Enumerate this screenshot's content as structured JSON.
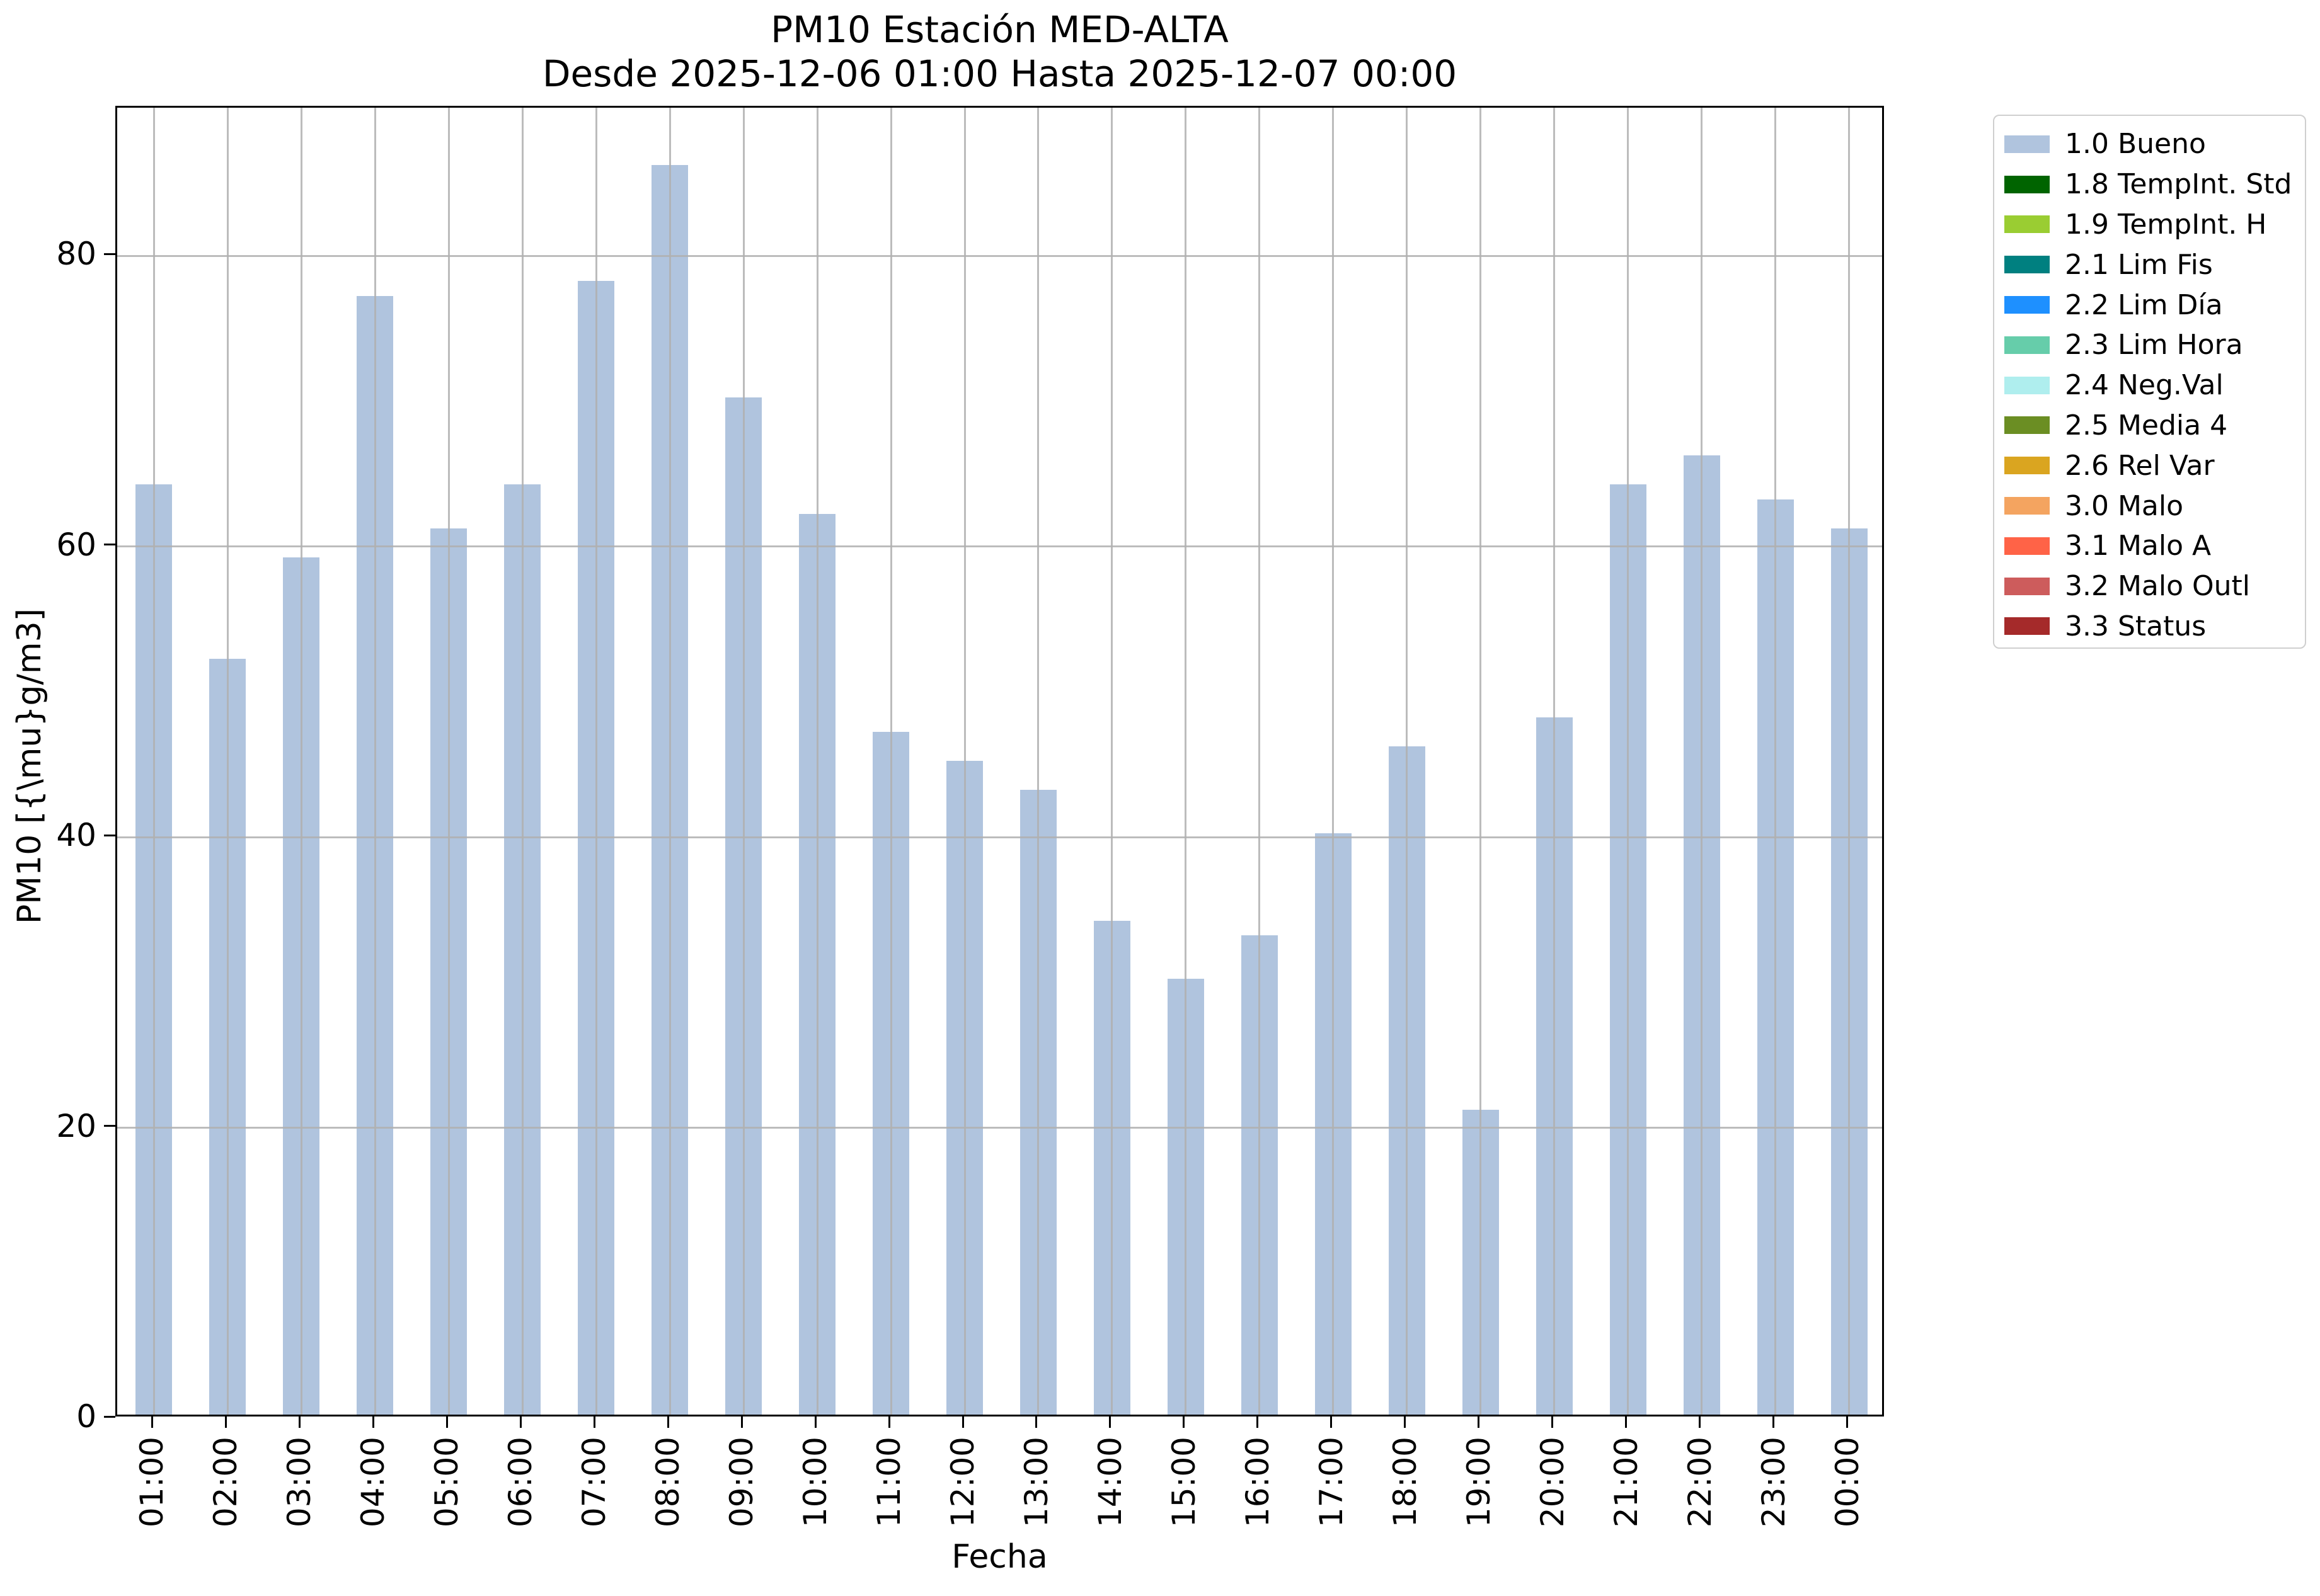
{
  "chart_data": {
    "type": "bar",
    "title": "PM10 Estación MED-ALTA",
    "subtitle": "Desde 2025-12-06 01:00 Hasta 2025-12-07 00:00",
    "xlabel": "Fecha",
    "ylabel": "PM10 [{\\mu}g/m3]",
    "categories": [
      "01:00",
      "02:00",
      "03:00",
      "04:00",
      "05:00",
      "06:00",
      "07:00",
      "08:00",
      "09:00",
      "10:00",
      "11:00",
      "12:00",
      "13:00",
      "14:00",
      "15:00",
      "16:00",
      "17:00",
      "18:00",
      "19:00",
      "20:00",
      "21:00",
      "22:00",
      "23:00",
      "00:00"
    ],
    "values": [
      64,
      52,
      59,
      77,
      61,
      64,
      78,
      86,
      70,
      62,
      47,
      45,
      43,
      34,
      30,
      33,
      40,
      46,
      21,
      48,
      64,
      66,
      63,
      61
    ],
    "series_name": "1.0 Bueno",
    "ylim": [
      0,
      90.2
    ],
    "yticks": [
      0,
      20,
      40,
      60,
      80
    ],
    "grid": true,
    "bar_color": "#b0c4de",
    "legend_position": "outside upper right",
    "legend": [
      {
        "label": "1.0 Bueno",
        "color": "#b0c4de"
      },
      {
        "label": "1.8 TempInt. Std",
        "color": "#006400"
      },
      {
        "label": "1.9 TempInt. H",
        "color": "#9acd32"
      },
      {
        "label": "2.1 Lim Fis",
        "color": "#008080"
      },
      {
        "label": "2.2 Lim Día",
        "color": "#1e90ff"
      },
      {
        "label": "2.3 Lim Hora",
        "color": "#66cdaa"
      },
      {
        "label": "2.4 Neg.Val",
        "color": "#afeeee"
      },
      {
        "label": "2.5 Media 4",
        "color": "#6b8e23"
      },
      {
        "label": "2.6 Rel Var",
        "color": "#daa520"
      },
      {
        "label": "3.0 Malo",
        "color": "#f4a460"
      },
      {
        "label": "3.1 Malo A",
        "color": "#ff6347"
      },
      {
        "label": "3.2 Malo Outl",
        "color": "#cd5c5c"
      },
      {
        "label": "3.3 Status",
        "color": "#a52a2a"
      }
    ]
  },
  "style": {
    "background": "#ffffff",
    "grid_color": "#b0b0b0",
    "spine_color": "#000000",
    "text_color": "#000000",
    "legend_border_color": "#cfcfcf"
  }
}
